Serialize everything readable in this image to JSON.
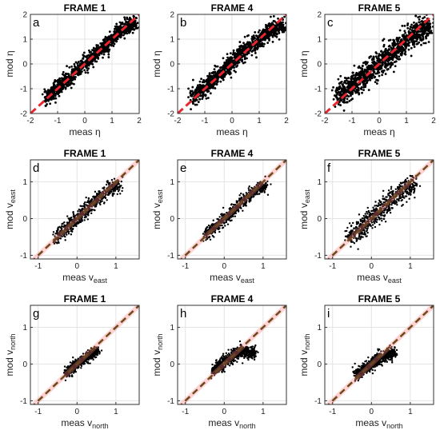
{
  "chart_data": [
    {
      "type": "scatter",
      "title": "FRAME 1",
      "panel_label": "a",
      "xlabel": "meas η",
      "ylabel": "mod η",
      "xlim": [
        -2,
        2
      ],
      "ylim": [
        -2,
        2
      ],
      "ticks": [
        -2,
        -1,
        0,
        1,
        2
      ],
      "tick_labels": [
        "-2",
        "-1",
        "0",
        "1",
        "2"
      ],
      "ref_line": "y = x",
      "spread": 0.18,
      "range": [
        -1.45,
        1.9
      ],
      "series": [
        {
          "values_note": "",
          "x": [
            -1.4,
            -1.0,
            -0.5,
            0.0,
            0.5,
            1.0,
            1.5,
            1.9
          ],
          "y": [
            -1.4,
            -1.0,
            -0.5,
            0.0,
            0.5,
            1.0,
            1.5,
            1.6
          ]
        }
      ]
    },
    {
      "type": "scatter",
      "title": "FRAME 4",
      "panel_label": "b",
      "xlabel": "meas η",
      "ylabel": "mod η",
      "xlim": [
        -2,
        2
      ],
      "ylim": [
        -2,
        2
      ],
      "ticks": [
        -2,
        -1,
        0,
        1,
        2
      ],
      "tick_labels": [
        "-2",
        "-1",
        "0",
        "1",
        "2"
      ],
      "ref_line": "y = x",
      "spread": 0.2,
      "range": [
        -1.45,
        1.9
      ],
      "series": [
        {
          "x": [
            -1.4,
            -1.0,
            -0.5,
            0.0,
            0.5,
            1.0,
            1.5,
            1.9
          ],
          "y": [
            -1.3,
            -0.95,
            -0.45,
            0.05,
            0.55,
            1.0,
            1.45,
            1.5
          ]
        }
      ]
    },
    {
      "type": "scatter",
      "title": "FRAME 5",
      "panel_label": "c",
      "xlabel": "meas η",
      "ylabel": "mod η",
      "xlim": [
        -2,
        2
      ],
      "ylim": [
        -2,
        2
      ],
      "ticks": [
        -2,
        -1,
        0,
        1,
        2
      ],
      "tick_labels": [
        "-2",
        "-1",
        "0",
        "1",
        "2"
      ],
      "ref_line": "y = x",
      "spread": 0.3,
      "range": [
        -1.5,
        1.9
      ],
      "series": [
        {
          "x": [
            -1.5,
            -1.0,
            -0.5,
            0.0,
            0.5,
            1.0,
            1.5,
            1.9
          ],
          "y": [
            -1.3,
            -0.9,
            -0.45,
            0.0,
            0.45,
            0.95,
            1.4,
            1.5
          ]
        }
      ]
    },
    {
      "type": "scatter",
      "title": "FRAME 1",
      "panel_label": "d",
      "xlabel": "meas v",
      "xlabel_sub": "east",
      "ylabel": "mod v",
      "ylabel_sub": "east",
      "xlim": [
        -1.2,
        1.6
      ],
      "ylim": [
        -1.1,
        1.6
      ],
      "ticks": [
        -1,
        0,
        1
      ],
      "tick_labels": [
        "-1",
        "0",
        "1"
      ],
      "ref_line": "y = x",
      "spread": 0.12,
      "range": [
        -0.55,
        1.1
      ],
      "series": [
        {
          "x": [
            -0.55,
            -0.3,
            0.0,
            0.3,
            0.6,
            0.9,
            1.1
          ],
          "y": [
            -0.5,
            -0.3,
            0.0,
            0.3,
            0.6,
            0.85,
            0.9
          ]
        }
      ]
    },
    {
      "type": "scatter",
      "title": "FRAME 4",
      "panel_label": "e",
      "xlabel": "meas v",
      "xlabel_sub": "east",
      "ylabel": "mod v",
      "ylabel_sub": "east",
      "xlim": [
        -1.2,
        1.6
      ],
      "ylim": [
        -1.1,
        1.6
      ],
      "ticks": [
        -1,
        0,
        1
      ],
      "tick_labels": [
        "-1",
        "0",
        "1"
      ],
      "ref_line": "y = x",
      "spread": 0.1,
      "range": [
        -0.5,
        1.1
      ],
      "series": [
        {
          "x": [
            -0.5,
            -0.25,
            0.0,
            0.3,
            0.6,
            0.9,
            1.1
          ],
          "y": [
            -0.45,
            -0.25,
            0.0,
            0.3,
            0.6,
            0.85,
            0.9
          ]
        }
      ]
    },
    {
      "type": "scatter",
      "title": "FRAME 5",
      "panel_label": "f",
      "xlabel": "meas v",
      "xlabel_sub": "east",
      "ylabel": "mod v",
      "ylabel_sub": "east",
      "xlim": [
        -1.2,
        1.6
      ],
      "ylim": [
        -1.1,
        1.6
      ],
      "ticks": [
        -1,
        0,
        1
      ],
      "tick_labels": [
        "-1",
        "0",
        "1"
      ],
      "ref_line": "y = x",
      "spread": 0.17,
      "range": [
        -0.6,
        1.1
      ],
      "series": [
        {
          "x": [
            -0.6,
            -0.3,
            0.0,
            0.3,
            0.6,
            0.9,
            1.1
          ],
          "y": [
            -0.55,
            -0.3,
            0.0,
            0.3,
            0.6,
            0.85,
            0.9
          ]
        }
      ]
    },
    {
      "type": "scatter",
      "title": "FRAME 1",
      "panel_label": "g",
      "xlabel": "meas v",
      "xlabel_sub": "north",
      "ylabel": "mod v",
      "ylabel_sub": "north",
      "xlim": [
        -1.2,
        1.6
      ],
      "ylim": [
        -1.1,
        1.6
      ],
      "ticks": [
        -1,
        0,
        1
      ],
      "tick_labels": [
        "-1",
        "0",
        "1"
      ],
      "ref_line": "y = x",
      "spread": 0.08,
      "range": [
        -0.3,
        0.55
      ],
      "series": [
        {
          "x": [
            -0.3,
            -0.1,
            0.0,
            0.2,
            0.4,
            0.55
          ],
          "y": [
            -0.25,
            -0.1,
            0.0,
            0.15,
            0.3,
            0.35
          ]
        }
      ]
    },
    {
      "type": "scatter",
      "title": "FRAME 4",
      "panel_label": "h",
      "xlabel": "meas v",
      "xlabel_sub": "north",
      "ylabel": "mod v",
      "ylabel_sub": "north",
      "xlim": [
        -1.2,
        1.6
      ],
      "ylim": [
        -1.1,
        1.6
      ],
      "ticks": [
        -1,
        0,
        1
      ],
      "tick_labels": [
        "-1",
        "0",
        "1"
      ],
      "ref_line": "y = x",
      "spread": 0.1,
      "range": [
        -0.3,
        0.8
      ],
      "series": [
        {
          "x": [
            -0.3,
            -0.1,
            0.0,
            0.2,
            0.4,
            0.8
          ],
          "y": [
            -0.2,
            -0.05,
            0.05,
            0.2,
            0.35,
            0.3
          ]
        }
      ]
    },
    {
      "type": "scatter",
      "title": "FRAME 5",
      "panel_label": "i",
      "xlabel": "meas v",
      "xlabel_sub": "north",
      "ylabel": "mod v",
      "ylabel_sub": "north",
      "xlim": [
        -1.2,
        1.6
      ],
      "ylim": [
        -1.1,
        1.6
      ],
      "ticks": [
        -1,
        0,
        1
      ],
      "tick_labels": [
        "-1",
        "0",
        "1"
      ],
      "ref_line": "y = x",
      "spread": 0.1,
      "range": [
        -0.4,
        0.6
      ],
      "series": [
        {
          "x": [
            -0.4,
            -0.2,
            0.0,
            0.2,
            0.4,
            0.6
          ],
          "y": [
            -0.3,
            -0.15,
            0.0,
            0.15,
            0.25,
            0.3
          ]
        }
      ]
    }
  ],
  "colors": {
    "points": "#000000",
    "ref_line_eta": "#e8262d",
    "ref_line_vel_fg": "#6b4b1e",
    "ref_line_vel_bg": "#ff8080",
    "grid": "#e4e4e4",
    "axis": "#333333"
  },
  "grid": true
}
